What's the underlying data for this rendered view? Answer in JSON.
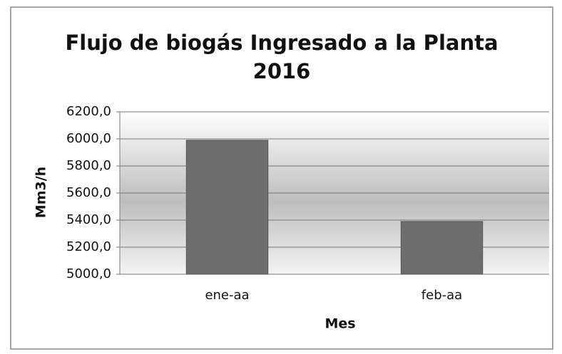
{
  "chart_data": {
    "type": "bar",
    "title": [
      "Flujo de biogás Ingresado a la Planta",
      "2016"
    ],
    "y_label": "Mm3/h",
    "x_label": "Mes",
    "categories": [
      "ene-aa",
      "feb-aa"
    ],
    "values": [
      5990,
      5390
    ],
    "color": "#6e6e6e",
    "ylim": [
      5000,
      6200
    ],
    "yticks": [
      {
        "value": 5000,
        "label": "5000,0"
      },
      {
        "value": 5200,
        "label": "5200,0"
      },
      {
        "value": 5400,
        "label": "5400,0"
      },
      {
        "value": 5600,
        "label": "5600,0"
      },
      {
        "value": 5800,
        "label": "5800,0"
      },
      {
        "value": 6000,
        "label": "6000,0"
      },
      {
        "value": 6200,
        "label": "6200,0"
      }
    ],
    "grid": true
  }
}
